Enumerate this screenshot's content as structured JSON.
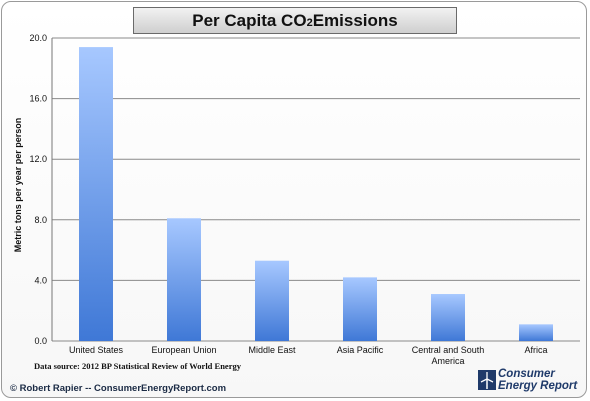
{
  "title_main": "Per Capita CO",
  "title_sub": "2",
  "title_end": " Emissions",
  "source": "Data source: 2012 BP Statistical Review of World Energy",
  "copyright": "© Robert Rapier -- ConsumerEnergyReport.com",
  "logo": {
    "line1": "Consumer",
    "line2": "Energy Report",
    "icon": "wind-turbine-icon"
  },
  "colors": {
    "bar_top": "#a7c8ff",
    "bar_bottom": "#3f78d6",
    "grid": "#8a8a8a"
  },
  "chart_data": {
    "type": "bar",
    "title": "Per Capita CO2 Emissions",
    "xlabel": "",
    "ylabel": "Metric tons per year per person",
    "categories": [
      [
        "United States"
      ],
      [
        "European Union"
      ],
      [
        "Middle East"
      ],
      [
        "Asia Pacific"
      ],
      [
        "Central and South",
        "America"
      ],
      [
        "Africa"
      ]
    ],
    "values": [
      19.4,
      8.1,
      5.3,
      4.2,
      3.1,
      1.1
    ],
    "ylim": [
      0,
      20
    ],
    "yticks": [
      "0.0",
      "4.0",
      "8.0",
      "12.0",
      "16.0",
      "20.0"
    ],
    "grid": true,
    "legend": "none"
  }
}
